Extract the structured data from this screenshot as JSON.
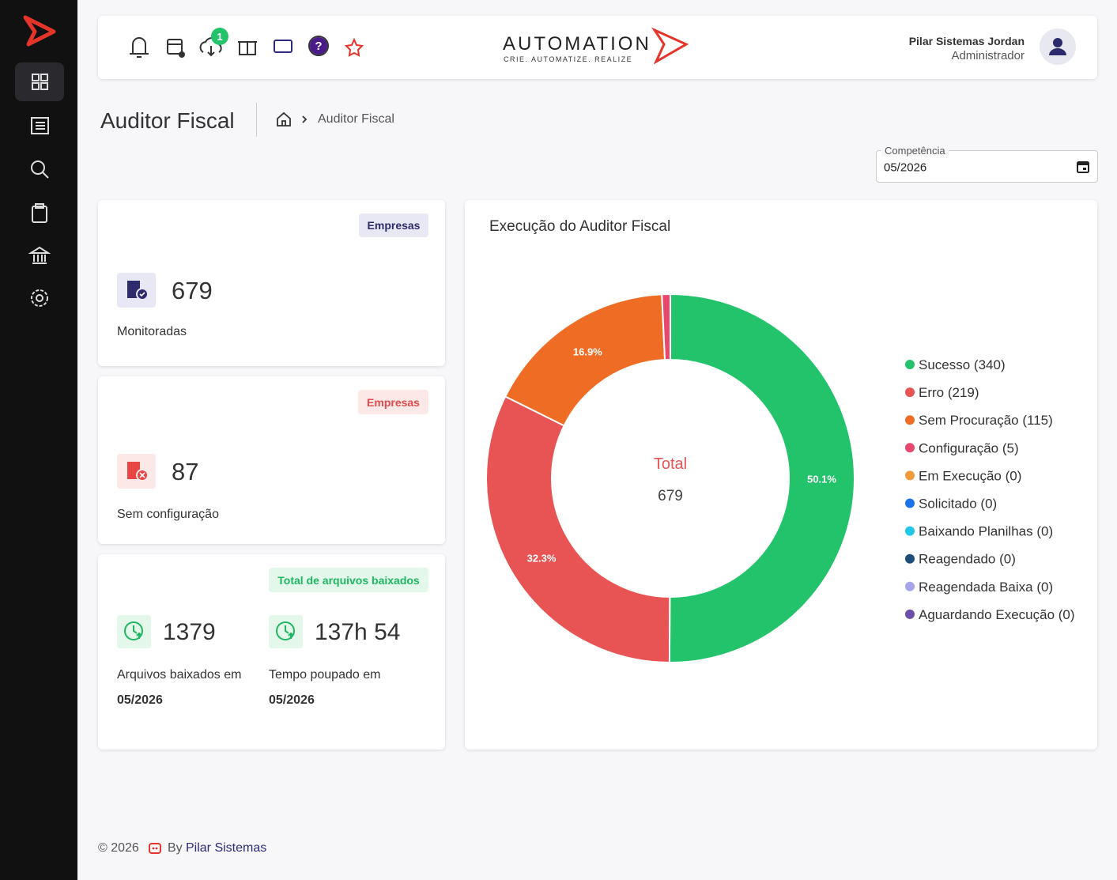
{
  "header": {
    "notification_badge": 1,
    "logo_title": "AUTOMATION",
    "logo_tagline": "CRIE. AUTOMATIZE. REALIZE",
    "user_name": "Pilar Sistemas Jordan",
    "user_role": "Administrador"
  },
  "page": {
    "title": "Auditor Fiscal",
    "breadcrumb": "Auditor Fiscal"
  },
  "filter": {
    "label": "Competência",
    "value": "05/2026"
  },
  "cards": [
    {
      "tag": "Empresas",
      "value": 679,
      "label": "Monitoradas"
    },
    {
      "tag": "Empresas",
      "value": 87,
      "label": "Sem configuração"
    },
    {
      "tag": "Total de arquivos baixados",
      "stats": [
        {
          "value": 1379,
          "label": "Arquivos baixados em",
          "period": "05/2026"
        },
        {
          "value": "137h 54",
          "label": "Tempo poupado em",
          "period": "05/2026"
        }
      ]
    }
  ],
  "chart_data": {
    "type": "donut",
    "title": "Execução do Auditor Fiscal",
    "center_label": "Total",
    "center_value": 679,
    "categories": [
      "Sucesso (340)",
      "Erro (219)",
      "Sem Procuração (115)",
      "Configuração (5)",
      "Em Execução (0)",
      "Solicitado (0)",
      "Baixando Planilhas (0)",
      "Reagendado (0)",
      "Reagendada Baixa (0)",
      "Aguardando Execução (0)"
    ],
    "values": [
      340,
      219,
      115,
      5,
      0,
      0,
      0,
      0,
      0,
      0
    ],
    "value_labels": [
      "50.1%",
      "32.3%",
      "16.9%",
      null,
      null,
      null,
      null,
      null,
      null,
      null
    ],
    "colors": [
      "#22c36b",
      "#e85454",
      "#ef6c24",
      "#e8476e",
      "#f59a3a",
      "#1a73e8",
      "#22c7e8",
      "#1d4e7a",
      "#a5a5e8",
      "#6c4fa8"
    ],
    "legend": "right"
  },
  "footer": {
    "copyright": "© 2026",
    "by": "By",
    "link": "Pilar Sistemas"
  }
}
